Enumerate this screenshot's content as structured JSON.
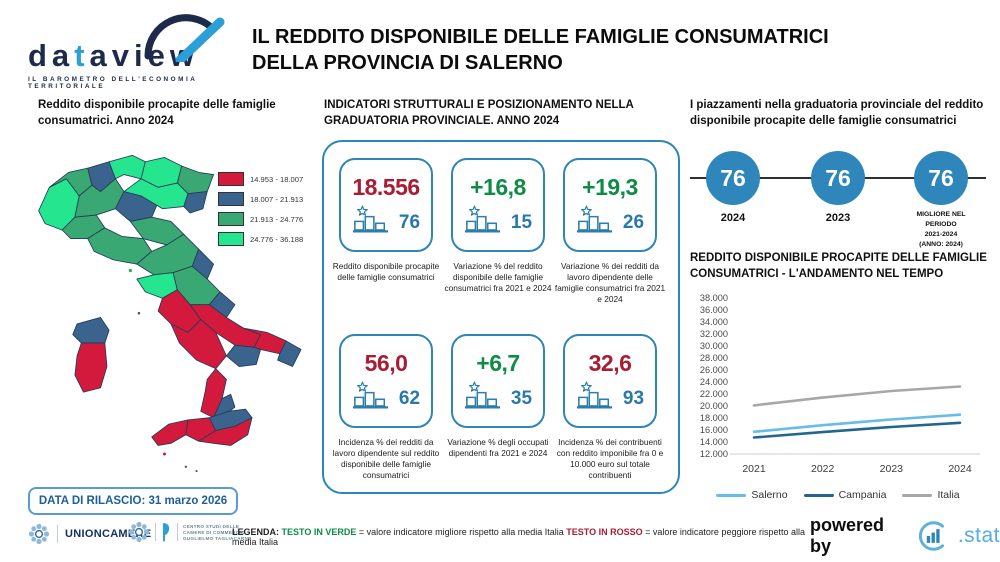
{
  "brand": {
    "logo_pre": "da",
    "logo_t": "t",
    "logo_post": "aview",
    "tagline": "IL BAROMETRO DELL'ECONOMIA TERRITORIALE"
  },
  "header": {
    "title_line1": "IL REDDITO DISPONIBILE DELLE FAMIGLIE CONSUMATRICI",
    "title_line2": "DELLA PROVINCIA DI SALERNO"
  },
  "map_panel": {
    "title": "Reddito disponibile procapite delle famiglie consumatrici. Anno 2024",
    "release_badge": "DATA DI RILASCIO: 31 marzo 2026"
  },
  "indicators_panel": {
    "title": "INDICATORI STRUTTURALI E POSIZIONAMENTO NELLA GRADUATORIA PROVINCIALE. ANNO 2024",
    "cards": [
      {
        "value": "18.556",
        "value_color": "#a81c34",
        "rank": "76",
        "caption": "Reddito disponibile procapite delle famiglie consumatrici"
      },
      {
        "value": "+16,8",
        "value_color": "#0e8c46",
        "rank": "15",
        "caption": "Variazione % del reddito disponibile delle famiglie consumatrici fra 2021 e 2024"
      },
      {
        "value": "+19,3",
        "value_color": "#0e8c46",
        "rank": "26",
        "caption": "Variazione % dei redditi da lavoro dipendente delle famiglie consumatrici fra 2021 e 2024"
      },
      {
        "value": "56,0",
        "value_color": "#a81c34",
        "rank": "62",
        "caption": "Incidenza % dei redditi da lavoro dipendente sul reddito disponibile delle famiglie consumatrici"
      },
      {
        "value": "+6,7",
        "value_color": "#0e8c46",
        "rank": "35",
        "caption": "Variazione % degli occupati dipendenti fra 2021 e 2024"
      },
      {
        "value": "32,6",
        "value_color": "#a81c34",
        "rank": "93",
        "caption": "Incidenza % dei contribuenti con reddito imponibile fra 0 e 10.000 euro sul totale contribuenti"
      }
    ]
  },
  "ranking_panel": {
    "title": "I piazzamenti nella graduatoria provinciale del reddito disponibile procapite delle famiglie consumatrici",
    "items": [
      {
        "value": "76",
        "label": "2024"
      },
      {
        "value": "76",
        "label": "2023"
      },
      {
        "value": "76",
        "label": "MIGLIORE NEL\nPERIODO\n2021-2024\n(ANNO: 2024)"
      }
    ]
  },
  "chart_data": [
    {
      "type": "heatmap",
      "subtype": "choropleth-map-italy-provinces",
      "title": "Reddito disponibile procapite delle famiglie consumatrici. Anno 2024",
      "classes": [
        {
          "range": "14.953 - 18.007",
          "color": "#d31a3d"
        },
        {
          "range": "18.007 - 21.913",
          "color": "#3a648e"
        },
        {
          "range": "21.913 - 24.776",
          "color": "#3aa873"
        },
        {
          "range": "24.776 - 36.188",
          "color": "#25e68f"
        }
      ],
      "pattern": {
        "north": "mostly 24.776-36.188 and 21.913-24.776 with scattered 18.007-21.913",
        "center": "mostly 21.913-24.776 with 24.776-36.188 near Lazio coast and 18.007-21.913 on Adriatic",
        "south_and_islands": "mostly 14.953-18.007 and 18.007-21.913"
      }
    },
    {
      "type": "line",
      "title": "REDDITO DISPONIBILE PROCAPITE DELLE FAMIGLIE CONSUMATRICI - L'ANDAMENTO NEL TEMPO",
      "categories": [
        "2021",
        "2022",
        "2023",
        "2024"
      ],
      "series": [
        {
          "name": "Salerno",
          "color": "#67bde8",
          "values": [
            15700,
            16800,
            17750,
            18556
          ]
        },
        {
          "name": "Campania",
          "color": "#23658e",
          "values": [
            14750,
            15650,
            16500,
            17200
          ]
        },
        {
          "name": "Italia",
          "color": "#a7a7a7",
          "values": [
            20100,
            21400,
            22500,
            23250
          ]
        }
      ],
      "ylim": [
        12000,
        38000
      ],
      "ytick_step": 2000,
      "grid": false,
      "legend_position": "bottom"
    }
  ],
  "footer": {
    "unioncamere_label": "UNIONCAMERE",
    "tagliacarne_lines": [
      "CENTRO STUDI DELLE",
      "CAMERE DI COMMERCIO",
      "GUGLIELMO TAGLIACARNE"
    ],
    "legend_prefix": "LEGENDA:",
    "legend_green_term": "TESTO IN VERDE",
    "legend_green_text": "= valore indicatore migliore rispetto alla media Italia",
    "legend_red_term": "TESTO IN ROSSO",
    "legend_red_text": "= valore indicatore peggiore rispetto alla media Italia",
    "powered_by": "powered by",
    "stat_label": ".stat"
  }
}
